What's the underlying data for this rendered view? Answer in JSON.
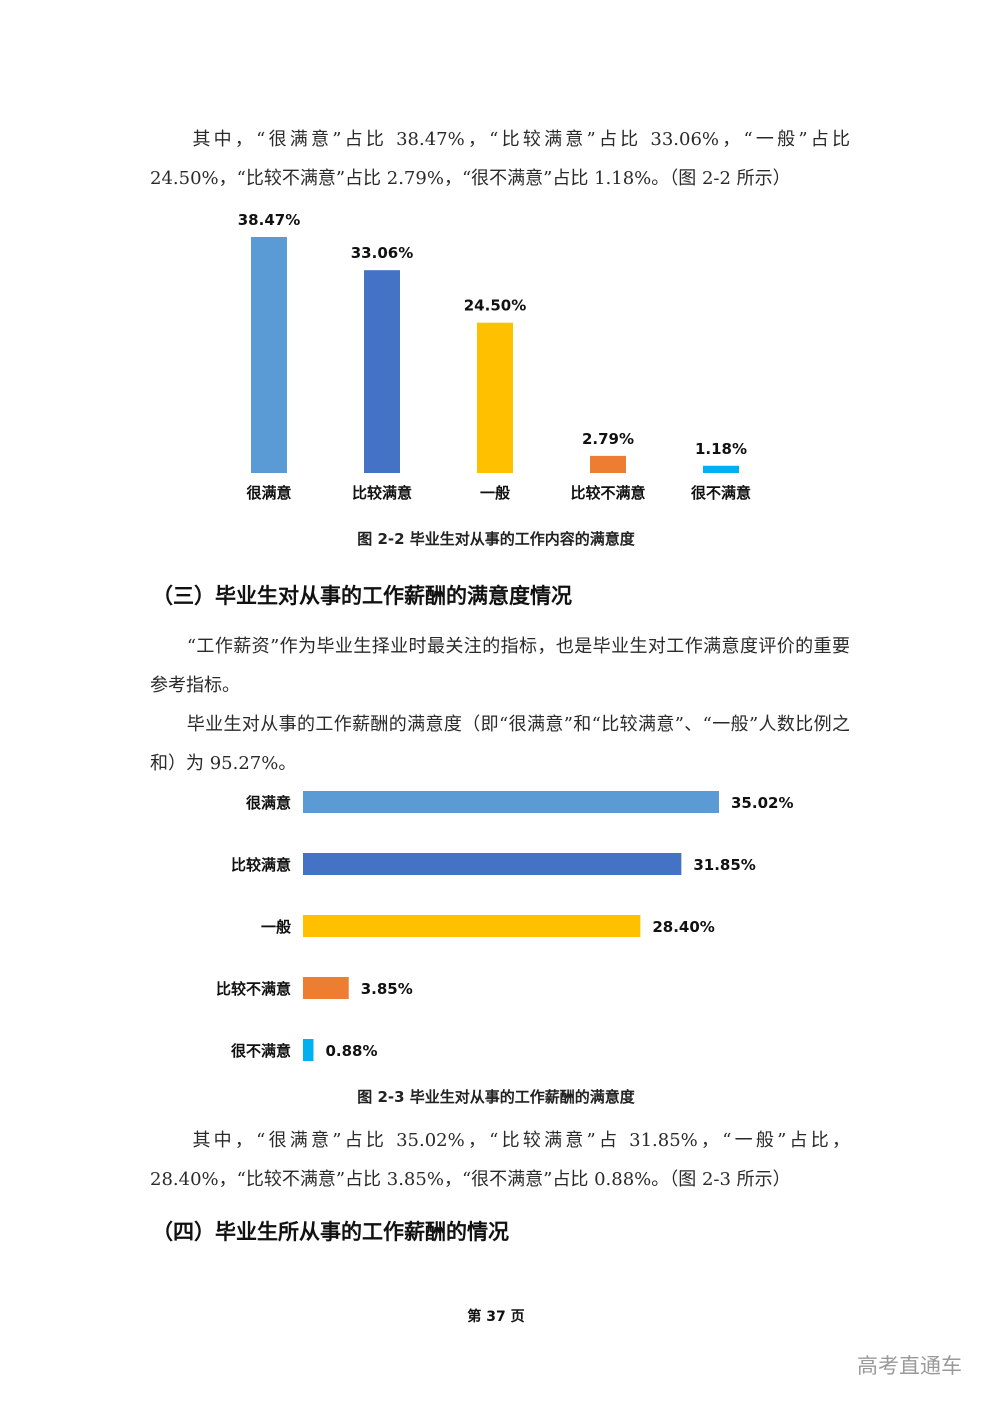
{
  "paragraphs": {
    "p1": "　　其中，“很满意”占比 38.47%，“比较满意”占比 33.06%，“一般”占比 24.50%，“比较不满意”占比 2.79%，“很不满意”占比 1.18%。（图 2-2 所示）",
    "p2": "　　“工作薪资”作为毕业生择业时最关注的指标，也是毕业生对工作满意度评价的重要参考指标。",
    "p3": "　　毕业生对从事的工作薪酬的满意度（即“很满意”和“比较满意”、“一般”人数比例之和）为 95.27%。",
    "p4": "　　其中，“很满意”占比 35.02%，“比较满意”占 31.85%，“一般”占比，28.40%，“比较不满意”占比 3.85%，“很不满意”占比 0.88%。（图 2-3 所示）"
  },
  "headings": {
    "h3": "（三）毕业生对从事的工作薪酬的满意度情况",
    "h4": "（四）毕业生所从事的工作薪酬的情况"
  },
  "chart_data": [
    {
      "type": "bar",
      "orientation": "vertical",
      "caption": "图 2-2  毕业生对从事的工作内容的满意度",
      "categories": [
        "很满意",
        "比较满意",
        "一般",
        "比较不满意",
        "很不满意"
      ],
      "values": [
        38.47,
        33.06,
        24.5,
        2.79,
        1.18
      ],
      "data_labels": [
        "38.47%",
        "33.06%",
        "24.50%",
        "2.79%",
        "1.18%"
      ],
      "colors": [
        "#5b9bd5",
        "#4472c4",
        "#ffc000",
        "#ed7d31",
        "#00b0f0"
      ],
      "ylim": [
        0,
        38.47
      ],
      "grid": false,
      "legend": "none"
    },
    {
      "type": "bar",
      "orientation": "horizontal",
      "caption": "图 2-3  毕业生对从事的工作薪酬的满意度",
      "categories": [
        "很满意",
        "比较满意",
        "一般",
        "比较不满意",
        "很不满意"
      ],
      "values": [
        35.02,
        31.85,
        28.4,
        3.85,
        0.88
      ],
      "data_labels": [
        "35.02%",
        "31.85%",
        "28.40%",
        "3.85%",
        "0.88%"
      ],
      "colors": [
        "#5b9bd5",
        "#4472c4",
        "#ffc000",
        "#ed7d31",
        "#00b0f0"
      ],
      "xlim": [
        0,
        35.02
      ],
      "grid": false,
      "legend": "none"
    }
  ],
  "footer": {
    "page": "第 37 页"
  },
  "watermark": "高考直通车"
}
